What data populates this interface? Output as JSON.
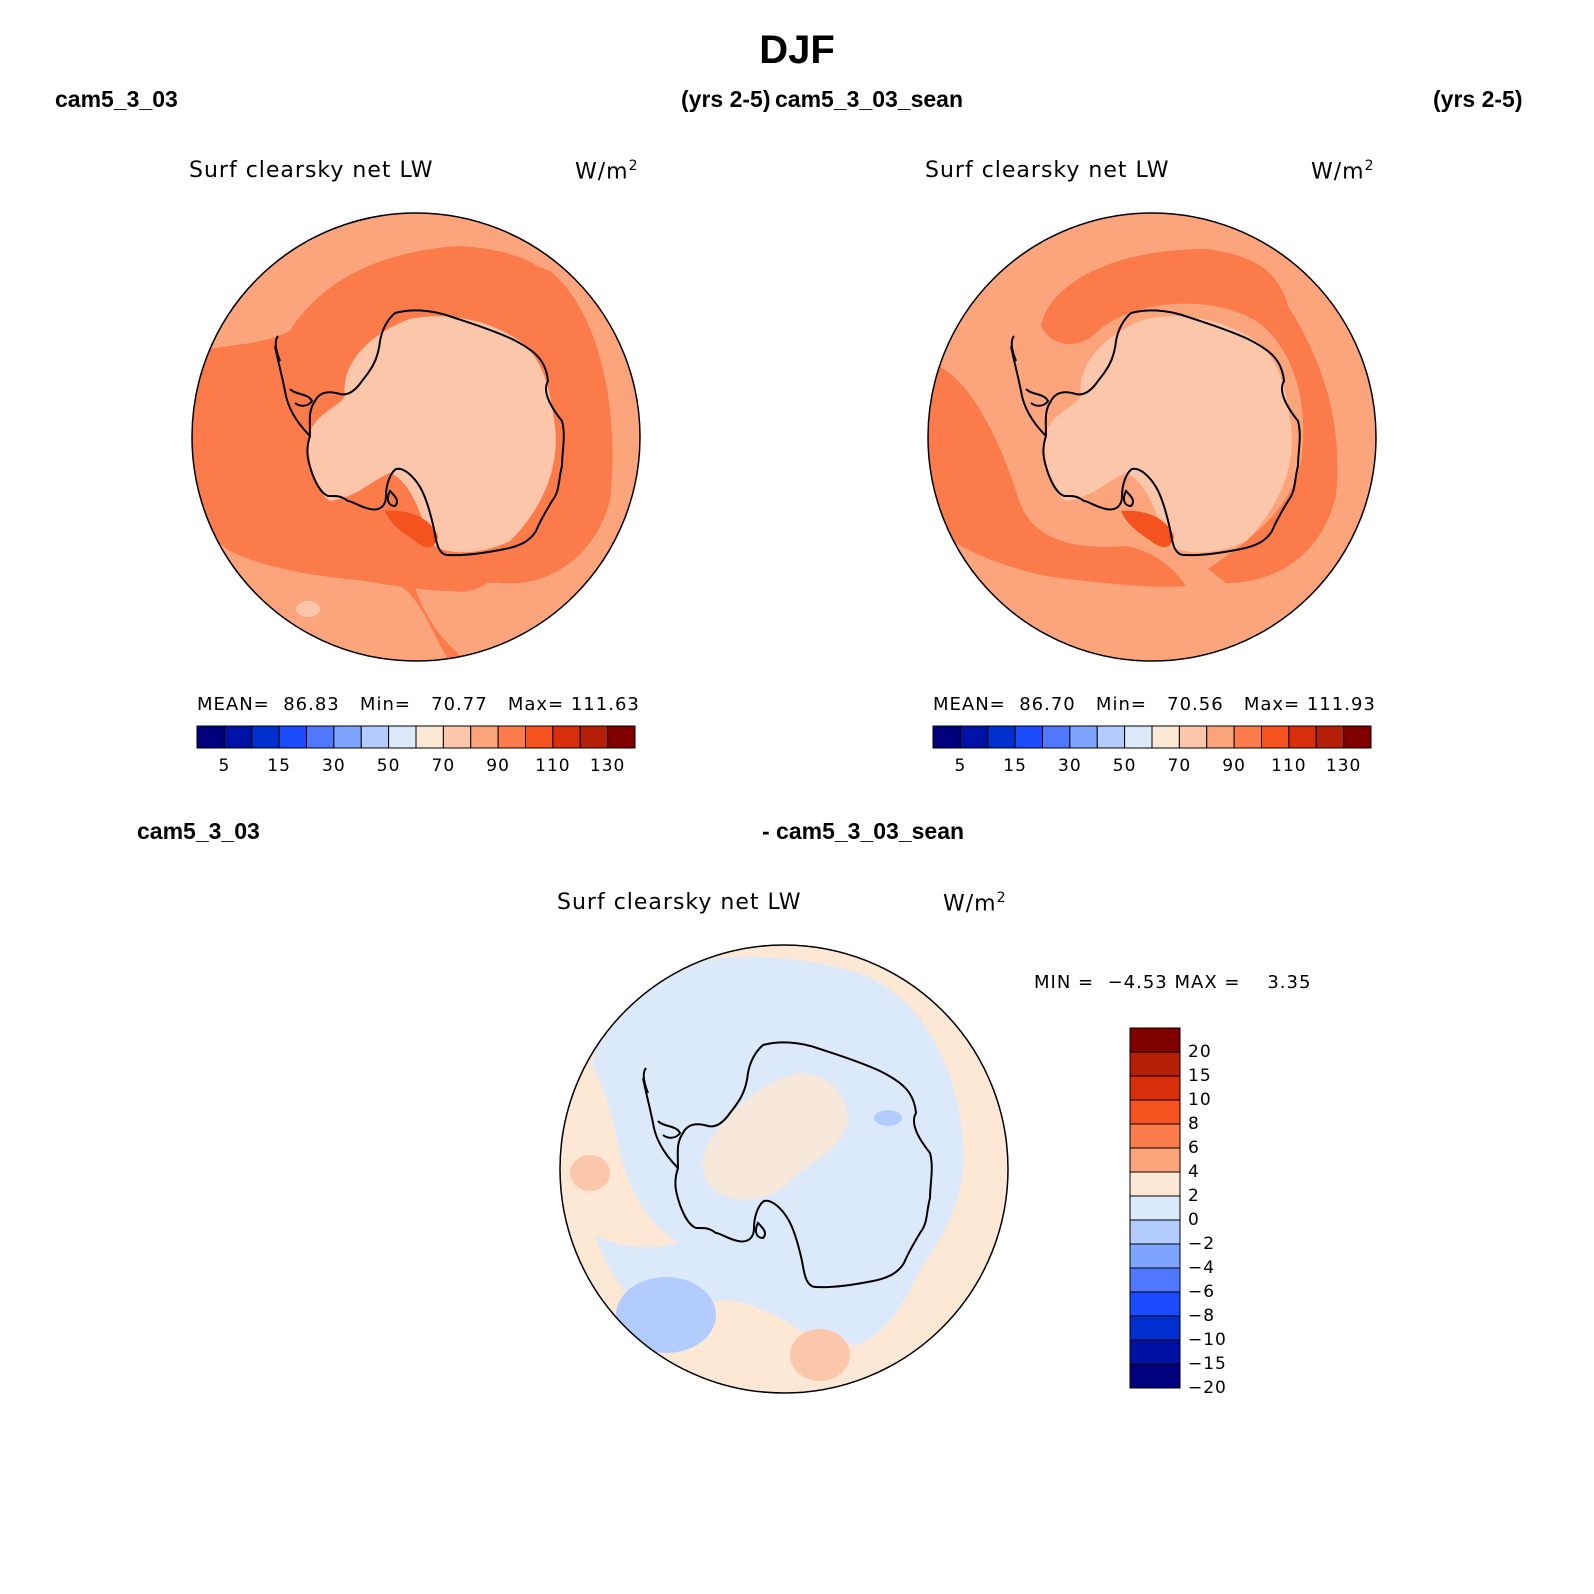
{
  "figure": {
    "season": "DJF",
    "row1_left_case": "cam5_3_03",
    "row1_left_years": "(yrs 2-5)",
    "row1_right_case": "cam5_3_03_sean",
    "row1_right_years": "(yrs 2-5)",
    "row2_left_case": "cam5_3_03",
    "row2_right_case": "- cam5_3_03_sean"
  },
  "panels": [
    {
      "title": "Surf clearsky net LW",
      "units": "W/m",
      "units_sup": "2",
      "mean_label": "MEAN=",
      "mean": "86.83",
      "min_label": "Min=",
      "min": "70.77",
      "max_label": "Max=",
      "max": "111.63"
    },
    {
      "title": "Surf clearsky net LW",
      "units": "W/m",
      "units_sup": "2",
      "mean_label": "MEAN=",
      "mean": "86.70",
      "min_label": "Min=",
      "min": "70.56",
      "max_label": "Max=",
      "max": "111.93"
    },
    {
      "title": "Surf clearsky net LW",
      "units": "W/m",
      "units_sup": "2",
      "min_label": "MIN =",
      "min": "−4.53",
      "max_label": "MAX =",
      "max": "3.35"
    }
  ],
  "colorbars": {
    "field": {
      "colors": [
        "#00007f",
        "#0012a6",
        "#002ecf",
        "#1a4bff",
        "#4f78ff",
        "#7fa4ff",
        "#b3ccff",
        "#dbe9fb",
        "#fde8d5",
        "#fcc6aa",
        "#fca57d",
        "#fb7b4b",
        "#f4521f",
        "#d92e0b",
        "#b41f05",
        "#800000"
      ],
      "labels": [
        "5",
        "15",
        "30",
        "50",
        "70",
        "90",
        "110",
        "130"
      ]
    },
    "diff": {
      "colors": [
        "#00007f",
        "#0012a6",
        "#002ecf",
        "#1a4bff",
        "#4f78ff",
        "#7fa4ff",
        "#b3ccff",
        "#dbe9fb",
        "#fde8d5",
        "#fca57d",
        "#fb7b4b",
        "#f4521f",
        "#d92e0b",
        "#b41f05",
        "#800000"
      ],
      "labels": [
        "20",
        "15",
        "10",
        "8",
        "6",
        "4",
        "2",
        "0",
        "−2",
        "−4",
        "−6",
        "−8",
        "−10",
        "−15",
        "−20"
      ]
    }
  }
}
